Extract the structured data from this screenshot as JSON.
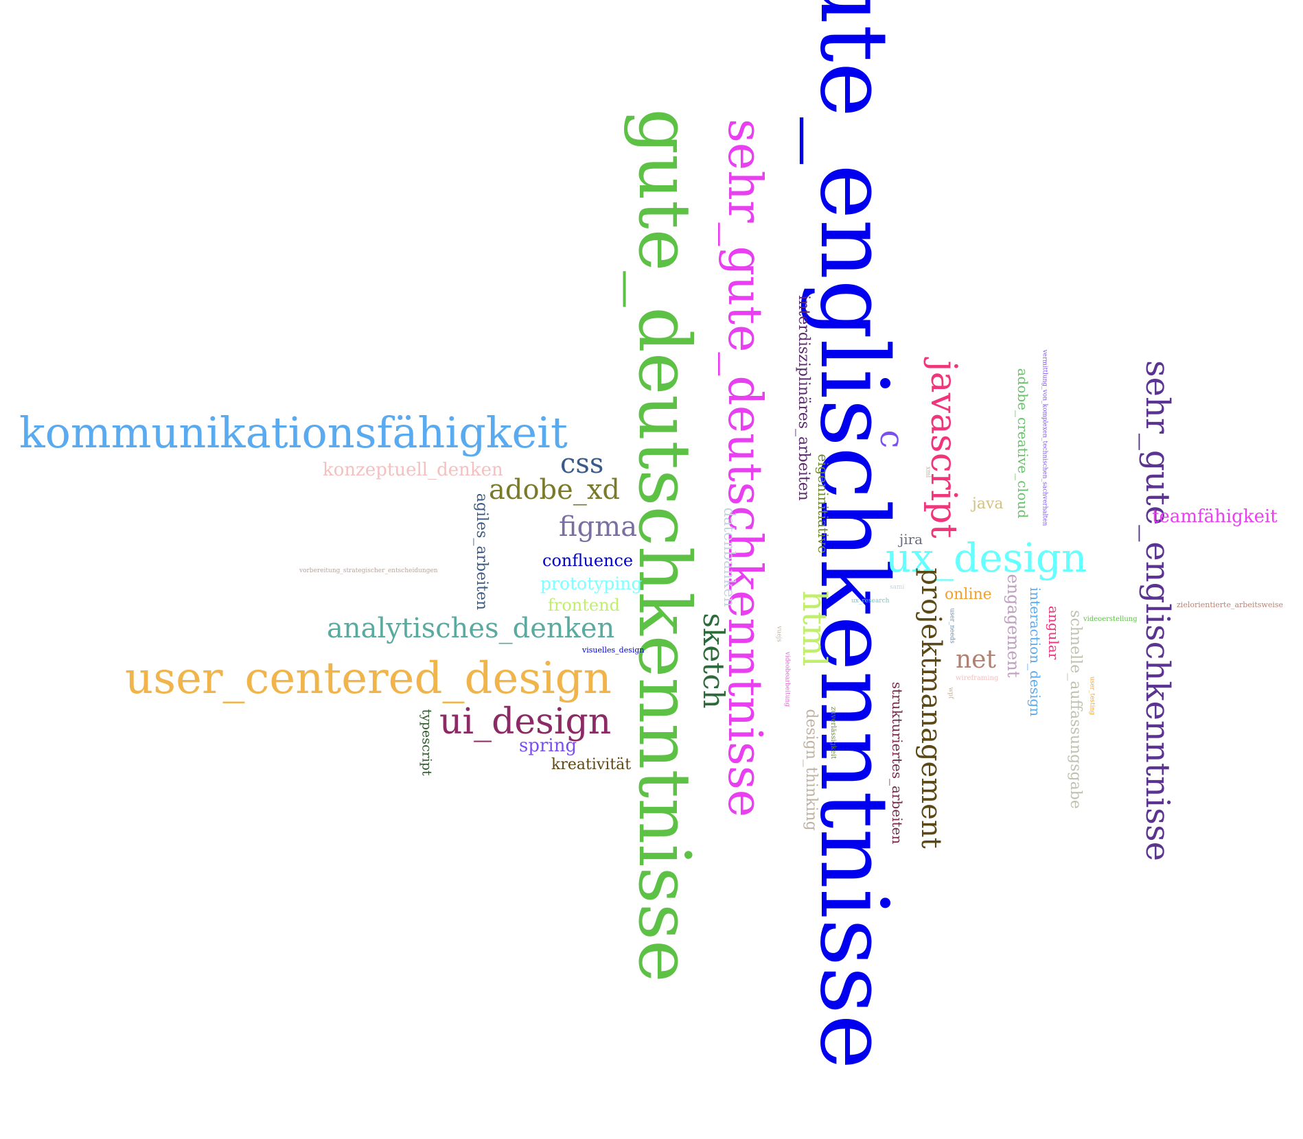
{
  "words": [
    {
      "text": "gute_englischkenntnisse",
      "color": "#0000ee",
      "vertical": true
    },
    {
      "text": "gute_deutschkenntnisse",
      "color": "#5cc144",
      "vertical": true
    },
    {
      "text": "sehr_gute_deutschkenntnisse",
      "color": "#e83ff0",
      "vertical": true
    },
    {
      "text": "sehr_gute_englischkenntnisse",
      "color": "#5a3490",
      "vertical": true
    },
    {
      "text": "kommunikationsfähigkeit",
      "color": "#5aaaf0",
      "vertical": false
    },
    {
      "text": "user_centered_design",
      "color": "#f0b44a",
      "vertical": false
    },
    {
      "text": "ui_design",
      "color": "#8c2a66",
      "vertical": false
    },
    {
      "text": "analytisches_denken",
      "color": "#5aaaa0",
      "vertical": false
    },
    {
      "text": "ux_design",
      "color": "#66ffff",
      "vertical": false
    },
    {
      "text": "javascript",
      "color": "#f0357a",
      "vertical": true
    },
    {
      "text": "projektmanagement",
      "color": "#5c4814",
      "vertical": true
    },
    {
      "text": "html",
      "color": "#c0ef6c",
      "vertical": true
    },
    {
      "text": "sketch",
      "color": "#2d6a3a",
      "vertical": true
    },
    {
      "text": "figma",
      "color": "#7a6fa0",
      "vertical": false
    },
    {
      "text": "adobe_xd",
      "color": "#7a7a2a",
      "vertical": false
    },
    {
      "text": "css",
      "color": "#3a5a8a",
      "vertical": false
    },
    {
      "text": "c",
      "color": "#7a4ef0",
      "vertical": true
    },
    {
      "text": "net",
      "color": "#b08070",
      "vertical": false
    },
    {
      "text": "konzeptuell_denken",
      "color": "#f4c0c0",
      "vertical": false
    },
    {
      "text": "agiles_arbeiten",
      "color": "#3a5a80",
      "vertical": true
    },
    {
      "text": "confluence",
      "color": "#0000cc",
      "vertical": false
    },
    {
      "text": "prototyping",
      "color": "#80ffff",
      "vertical": false
    },
    {
      "text": "frontend",
      "color": "#c0ef6c",
      "vertical": false
    },
    {
      "text": "visuelles_design",
      "color": "#0000cc",
      "vertical": false
    },
    {
      "text": "vorbereitung_strategischer_entscheidungen",
      "color": "#c4a090",
      "vertical": false
    },
    {
      "text": "typescript",
      "color": "#2d5a2a",
      "vertical": true
    },
    {
      "text": "spring",
      "color": "#7a4ef0",
      "vertical": false
    },
    {
      "text": "kreativität",
      "color": "#5c4814",
      "vertical": false
    },
    {
      "text": "datenbanken",
      "color": "#c4d4e0",
      "vertical": true
    },
    {
      "text": "interdisziplinäres_arbeiten",
      "color": "#5a2a6a",
      "vertical": true
    },
    {
      "text": "eigeninitiative",
      "color": "#6a8a30",
      "vertical": true
    },
    {
      "text": "design_thinking",
      "color": "#c0b0a0",
      "vertical": true
    },
    {
      "text": "strukturiertes_arbeiten",
      "color": "#7a2a4a",
      "vertical": true
    },
    {
      "text": "zuverlässigkeit",
      "color": "#6a8a30",
      "vertical": true
    },
    {
      "text": "videobearbeitung",
      "color": "#e060d0",
      "vertical": true
    },
    {
      "text": "vuejs",
      "color": "#c0b0a0",
      "vertical": true
    },
    {
      "text": "jira",
      "color": "#6a6a80",
      "vertical": false
    },
    {
      "text": "java",
      "color": "#d4c080",
      "vertical": false
    },
    {
      "text": "online",
      "color": "#f0a030",
      "vertical": false
    },
    {
      "text": "sami",
      "color": "#c4d4e0",
      "vertical": false
    },
    {
      "text": "ux_research",
      "color": "#66cccc",
      "vertical": false
    },
    {
      "text": "user_needs",
      "color": "#6a8ab0",
      "vertical": true
    },
    {
      "text": "xml",
      "color": "#c0b0a0",
      "vertical": true
    },
    {
      "text": "wireframing",
      "color": "#f4c0c0",
      "vertical": false
    },
    {
      "text": "wpf",
      "color": "#c0b0a0",
      "vertical": true
    },
    {
      "text": "engagement",
      "color": "#c0a0c0",
      "vertical": true
    },
    {
      "text": "interaction_design",
      "color": "#5aaaf0",
      "vertical": true
    },
    {
      "text": "angular",
      "color": "#f0357a",
      "vertical": true
    },
    {
      "text": "adobe_creative_cloud",
      "color": "#6ac06a",
      "vertical": true
    },
    {
      "text": "vermittlung_von_komplexen_technischen_sachverhalten",
      "color": "#7a4ef0",
      "vertical": true
    },
    {
      "text": "schnelle_auffassungsgabe",
      "color": "#c0c0b0",
      "vertical": true
    },
    {
      "text": "videoerstellung",
      "color": "#5cc144",
      "vertical": false
    },
    {
      "text": "user_testing",
      "color": "#f0a030",
      "vertical": true
    },
    {
      "text": "teamfähigkeit",
      "color": "#e83ff0",
      "vertical": false
    },
    {
      "text": "zielorientierte_arbeitsweise",
      "color": "#c08070",
      "vertical": false
    }
  ]
}
